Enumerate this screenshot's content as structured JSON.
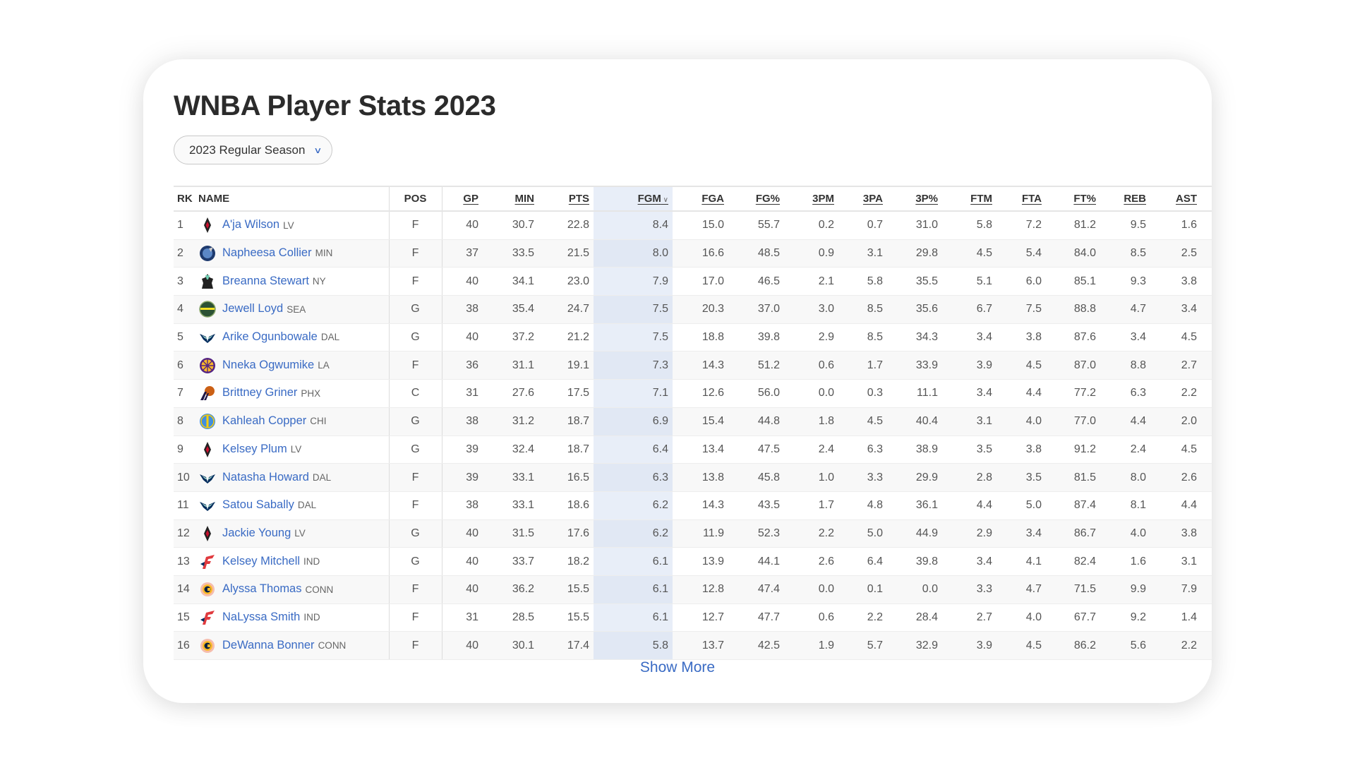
{
  "title": "WNBA Player Stats 2023",
  "season_dropdown": {
    "selected": "2023 Regular Season"
  },
  "colors": {
    "link": "#3a6bc4",
    "sorted_column_bg": "#e8eef8"
  },
  "table": {
    "sorted_by": "FGM",
    "sort_direction": "descending",
    "columns": [
      "RK",
      "NAME",
      "POS",
      "GP",
      "MIN",
      "PTS",
      "FGM",
      "FGA",
      "FG%",
      "3PM",
      "3PA",
      "3P%",
      "FTM",
      "FTA",
      "FT%",
      "REB",
      "AST"
    ],
    "rows": [
      {
        "rk": "1",
        "name": "A'ja Wilson",
        "team": "LV",
        "logo": "las-vegas-aces-logo",
        "pos": "F",
        "stats": [
          "40",
          "30.7",
          "22.8",
          "8.4",
          "15.0",
          "55.7",
          "0.2",
          "0.7",
          "31.0",
          "5.8",
          "7.2",
          "81.2",
          "9.5",
          "1.6"
        ]
      },
      {
        "rk": "2",
        "name": "Napheesa Collier",
        "team": "MIN",
        "logo": "minnesota-lynx-logo",
        "pos": "F",
        "stats": [
          "37",
          "33.5",
          "21.5",
          "8.0",
          "16.6",
          "48.5",
          "0.9",
          "3.1",
          "29.8",
          "4.5",
          "5.4",
          "84.0",
          "8.5",
          "2.5"
        ]
      },
      {
        "rk": "3",
        "name": "Breanna Stewart",
        "team": "NY",
        "logo": "new-york-liberty-logo",
        "pos": "F",
        "stats": [
          "40",
          "34.1",
          "23.0",
          "7.9",
          "17.0",
          "46.5",
          "2.1",
          "5.8",
          "35.5",
          "5.1",
          "6.0",
          "85.1",
          "9.3",
          "3.8"
        ]
      },
      {
        "rk": "4",
        "name": "Jewell Loyd",
        "team": "SEA",
        "logo": "seattle-storm-logo",
        "pos": "G",
        "stats": [
          "38",
          "35.4",
          "24.7",
          "7.5",
          "20.3",
          "37.0",
          "3.0",
          "8.5",
          "35.6",
          "6.7",
          "7.5",
          "88.8",
          "4.7",
          "3.4"
        ]
      },
      {
        "rk": "5",
        "name": "Arike Ogunbowale",
        "team": "DAL",
        "logo": "dallas-wings-logo",
        "pos": "G",
        "stats": [
          "40",
          "37.2",
          "21.2",
          "7.5",
          "18.8",
          "39.8",
          "2.9",
          "8.5",
          "34.3",
          "3.4",
          "3.8",
          "87.6",
          "3.4",
          "4.5"
        ]
      },
      {
        "rk": "6",
        "name": "Nneka Ogwumike",
        "team": "LA",
        "logo": "los-angeles-sparks-logo",
        "pos": "F",
        "stats": [
          "36",
          "31.1",
          "19.1",
          "7.3",
          "14.3",
          "51.2",
          "0.6",
          "1.7",
          "33.9",
          "3.9",
          "4.5",
          "87.0",
          "8.8",
          "2.7"
        ]
      },
      {
        "rk": "7",
        "name": "Brittney Griner",
        "team": "PHX",
        "logo": "phoenix-mercury-logo",
        "pos": "C",
        "stats": [
          "31",
          "27.6",
          "17.5",
          "7.1",
          "12.6",
          "56.0",
          "0.0",
          "0.3",
          "11.1",
          "3.4",
          "4.4",
          "77.2",
          "6.3",
          "2.2"
        ]
      },
      {
        "rk": "8",
        "name": "Kahleah Copper",
        "team": "CHI",
        "logo": "chicago-sky-logo",
        "pos": "G",
        "stats": [
          "38",
          "31.2",
          "18.7",
          "6.9",
          "15.4",
          "44.8",
          "1.8",
          "4.5",
          "40.4",
          "3.1",
          "4.0",
          "77.0",
          "4.4",
          "2.0"
        ]
      },
      {
        "rk": "9",
        "name": "Kelsey Plum",
        "team": "LV",
        "logo": "las-vegas-aces-logo",
        "pos": "G",
        "stats": [
          "39",
          "32.4",
          "18.7",
          "6.4",
          "13.4",
          "47.5",
          "2.4",
          "6.3",
          "38.9",
          "3.5",
          "3.8",
          "91.2",
          "2.4",
          "4.5"
        ]
      },
      {
        "rk": "10",
        "name": "Natasha Howard",
        "team": "DAL",
        "logo": "dallas-wings-logo",
        "pos": "F",
        "stats": [
          "39",
          "33.1",
          "16.5",
          "6.3",
          "13.8",
          "45.8",
          "1.0",
          "3.3",
          "29.9",
          "2.8",
          "3.5",
          "81.5",
          "8.0",
          "2.6"
        ]
      },
      {
        "rk": "11",
        "name": "Satou Sabally",
        "team": "DAL",
        "logo": "dallas-wings-logo",
        "pos": "F",
        "stats": [
          "38",
          "33.1",
          "18.6",
          "6.2",
          "14.3",
          "43.5",
          "1.7",
          "4.8",
          "36.1",
          "4.4",
          "5.0",
          "87.4",
          "8.1",
          "4.4"
        ]
      },
      {
        "rk": "12",
        "name": "Jackie Young",
        "team": "LV",
        "logo": "las-vegas-aces-logo",
        "pos": "G",
        "stats": [
          "40",
          "31.5",
          "17.6",
          "6.2",
          "11.9",
          "52.3",
          "2.2",
          "5.0",
          "44.9",
          "2.9",
          "3.4",
          "86.7",
          "4.0",
          "3.8"
        ]
      },
      {
        "rk": "13",
        "name": "Kelsey Mitchell",
        "team": "IND",
        "logo": "indiana-fever-logo",
        "pos": "G",
        "stats": [
          "40",
          "33.7",
          "18.2",
          "6.1",
          "13.9",
          "44.1",
          "2.6",
          "6.4",
          "39.8",
          "3.4",
          "4.1",
          "82.4",
          "1.6",
          "3.1"
        ]
      },
      {
        "rk": "14",
        "name": "Alyssa Thomas",
        "team": "CONN",
        "logo": "connecticut-sun-logo",
        "pos": "F",
        "stats": [
          "40",
          "36.2",
          "15.5",
          "6.1",
          "12.8",
          "47.4",
          "0.0",
          "0.1",
          "0.0",
          "3.3",
          "4.7",
          "71.5",
          "9.9",
          "7.9"
        ]
      },
      {
        "rk": "15",
        "name": "NaLyssa Smith",
        "team": "IND",
        "logo": "indiana-fever-logo",
        "pos": "F",
        "stats": [
          "31",
          "28.5",
          "15.5",
          "6.1",
          "12.7",
          "47.7",
          "0.6",
          "2.2",
          "28.4",
          "2.7",
          "4.0",
          "67.7",
          "9.2",
          "1.4"
        ]
      },
      {
        "rk": "16",
        "name": "DeWanna Bonner",
        "team": "CONN",
        "logo": "connecticut-sun-logo",
        "pos": "F",
        "stats": [
          "40",
          "30.1",
          "17.4",
          "5.8",
          "13.7",
          "42.5",
          "1.9",
          "5.7",
          "32.9",
          "3.9",
          "4.5",
          "86.2",
          "5.6",
          "2.2"
        ]
      }
    ]
  },
  "show_more_label": "Show More"
}
